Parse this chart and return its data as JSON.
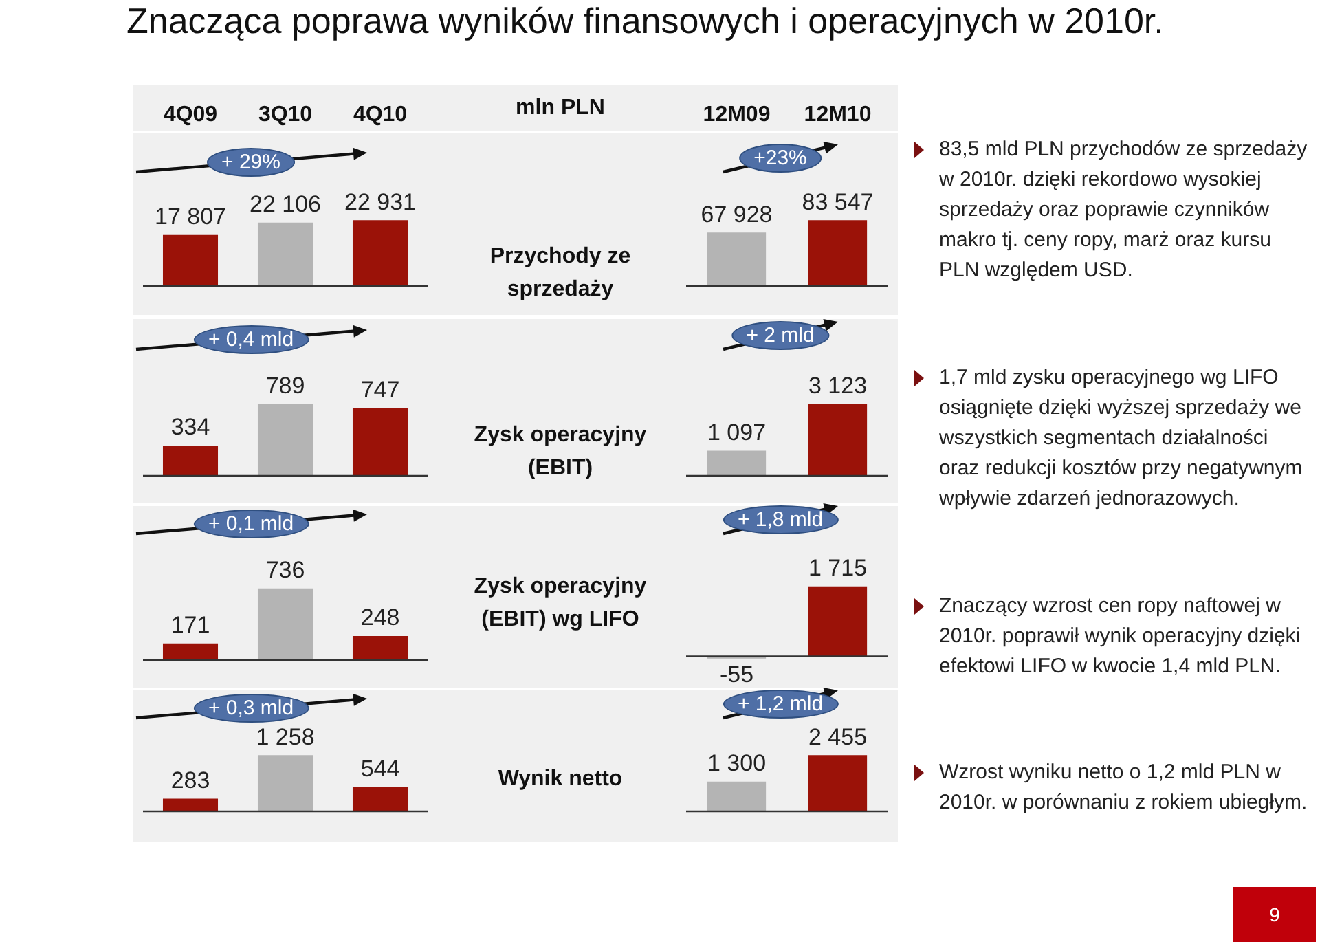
{
  "chart_data": [
    {
      "type": "bar",
      "categories": [
        "4Q09",
        "3Q10",
        "4Q10"
      ],
      "values": [
        17807,
        22106,
        22931
      ],
      "value_labels": [
        "17 807",
        "22 106",
        "22 931"
      ],
      "colors": [
        "#9b1208",
        "#b4b4b4",
        "#9b1208"
      ],
      "annotations": [
        "+ 29%"
      ],
      "tick_labels": "x"
    },
    {
      "type": "bar",
      "categories": [
        "12M09",
        "12M10"
      ],
      "values": [
        67928,
        83547
      ],
      "value_labels": [
        "67 928",
        "83 547"
      ],
      "colors": [
        "#b4b4b4",
        "#9b1208"
      ],
      "annotations": [
        "+23%"
      ],
      "tick_labels": "x"
    },
    {
      "type": "bar",
      "categories": [
        null,
        null,
        null
      ],
      "values": [
        334,
        789,
        747
      ],
      "value_labels": [
        "334",
        "789",
        "747"
      ],
      "colors": [
        "#9b1208",
        "#b4b4b4",
        "#9b1208"
      ],
      "annotations": [
        "+ 0,4 mld"
      ],
      "tick_labels": false
    },
    {
      "type": "bar",
      "categories": [
        null,
        null
      ],
      "values": [
        1097,
        3123
      ],
      "value_labels": [
        "1 097",
        "3 123"
      ],
      "colors": [
        "#b4b4b4",
        "#9b1208"
      ],
      "annotations": [
        "+ 2 mld"
      ],
      "tick_labels": false
    },
    {
      "type": "bar",
      "categories": [
        null,
        null,
        null
      ],
      "values": [
        171,
        736,
        248
      ],
      "value_labels": [
        "171",
        "736",
        "248"
      ],
      "colors": [
        "#9b1208",
        "#b4b4b4",
        "#9b1208"
      ],
      "annotations": [
        "+ 0,1 mld"
      ],
      "tick_labels": false
    },
    {
      "type": "bar",
      "categories": [
        null,
        null
      ],
      "values": [
        -55,
        1715
      ],
      "value_labels": [
        "-55",
        "1 715"
      ],
      "colors": [
        "#b4b4b4",
        "#9b1208"
      ],
      "annotations": [
        "+ 1,8 mld"
      ],
      "tick_labels": false
    },
    {
      "type": "bar",
      "categories": [
        null,
        null,
        null
      ],
      "values": [
        283,
        1258,
        544
      ],
      "value_labels": [
        "283",
        "1 258",
        "544"
      ],
      "colors": [
        "#9b1208",
        "#b4b4b4",
        "#9b1208"
      ],
      "annotations": [
        "+ 0,3 mld"
      ],
      "tick_labels": false
    },
    {
      "type": "bar",
      "categories": [
        null,
        null
      ],
      "values": [
        1300,
        2455
      ],
      "value_labels": [
        "1 300",
        "2 455"
      ],
      "colors": [
        "#b4b4b4",
        "#9b1208"
      ],
      "annotations": [
        "+ 1,2 mld"
      ],
      "tick_labels": false
    },
    {
      "type": "other",
      "annotations": [
        "mln PLN",
        "Przychody ze sprzedaży",
        "Zysk operacyjny (EBIT)",
        "Zysk operacyjny (EBIT) wg LIFO",
        "Wynik netto"
      ]
    },
    {
      "type": "other",
      "title": "Znacząca poprawa wyników finansowych i operacyjnych w 2010r.",
      "annotations": [
        "83,5 mld PLN przychodów ze sprzedaży w 2010r. dzięki rekordowo wysokiej sprzedaży oraz poprawie czynników makro tj. ceny ropy, marż oraz kursu PLN względem USD.",
        "1,7 mld zysku operacyjnego wg LIFO osiągnięte dzięki wyższej sprzedaży we wszystkich segmentach działalności oraz redukcji kosztów przy negatywnym wpływie zdarzeń jednorazowych.",
        "Znaczący wzrost cen ropy naftowej w 2010r. poprawił wynik operacyjny dzięki efektowi LIFO w kwocie 1,4 mld PLN.",
        "Wzrost wyniku netto o 1,2 mld PLN w 2010r. w porównaniu z rokiem ubiegłym.",
        "9"
      ]
    }
  ]
}
